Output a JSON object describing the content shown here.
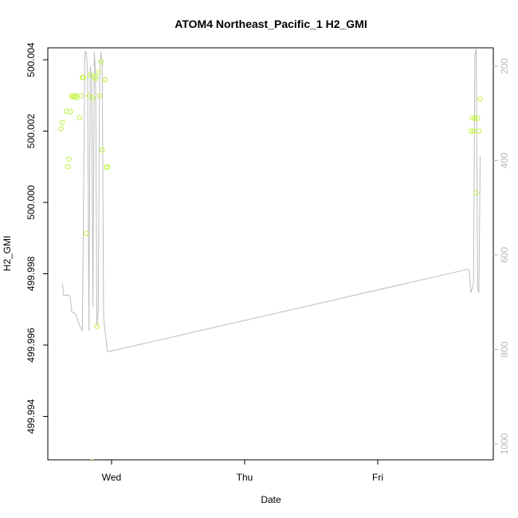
{
  "chart_data": {
    "type": "scatter",
    "title": "ATOM4 Northeast_Pacific_1 H2_GMI",
    "xlabel": "Date",
    "ylabel": "H2_GMI",
    "x_ticks": [
      "Wed",
      "Thu",
      "Fri"
    ],
    "y_ticks": [
      "499.994",
      "499.996",
      "499.998",
      "500.000",
      "500.002",
      "500.004"
    ],
    "right_ticks": [
      "200",
      "400",
      "600",
      "800",
      "1000"
    ],
    "xlim_days": [
      -0.5,
      2.86
    ],
    "ylim": [
      499.99286,
      500.00403
    ],
    "right_ylim": [
      1000,
      200
    ],
    "colors": {
      "points": "#bff542",
      "line": "#bdbdbd",
      "axis": "#000000",
      "right_axis": "#b8b8b8"
    },
    "series": [
      {
        "role": "points",
        "x_days": [
          -0.38,
          -0.37,
          -0.34,
          -0.33,
          -0.32,
          -0.31,
          -0.3,
          -0.29,
          -0.28,
          -0.27,
          -0.26,
          -0.24,
          -0.23,
          -0.22,
          -0.21,
          -0.19,
          -0.17,
          -0.16,
          -0.15,
          -0.14,
          -0.13,
          -0.12,
          -0.11,
          -0.1,
          -0.09,
          -0.08,
          -0.07,
          -0.05,
          -0.04,
          -0.03,
          2.7,
          2.71,
          2.72,
          2.73,
          2.74,
          2.75,
          2.76
        ],
        "y": [
          500.00207,
          500.00224,
          500.00256,
          500.001,
          500.00121,
          500.00254,
          500.00298,
          500.00298,
          500.00296,
          500.00299,
          500.00294,
          500.00238,
          500.00299,
          500.0035,
          500.0035,
          499.99913,
          500.00299,
          500.00358,
          499.99273,
          500.00293,
          500.00352,
          500.00348,
          499.99653,
          500.00365,
          500.00299,
          500.00395,
          500.00147,
          500.00344,
          500.00099,
          500.00099,
          500.002,
          500.00237,
          500.002,
          500.00236,
          500.00027,
          500.00236,
          500.002
        ],
        "y_extra": [
          {
            "x_days": 2.77,
            "y": 500.0029
          }
        ]
      },
      {
        "role": "line",
        "axis": "right",
        "x_days": [
          -0.37,
          -0.36,
          -0.34,
          -0.32,
          -0.31,
          -0.3,
          -0.27,
          -0.24,
          -0.22,
          -0.2,
          -0.19,
          -0.18,
          -0.17,
          -0.16,
          -0.15,
          -0.14,
          -0.13,
          -0.12,
          -0.11,
          -0.1,
          -0.09,
          -0.08,
          -0.07,
          -0.06,
          -0.05,
          -0.03,
          2.68,
          2.69,
          2.7,
          2.72,
          2.73,
          2.74,
          2.75,
          2.76,
          2.77
        ],
        "values": [
          660,
          685,
          685,
          685,
          690,
          720,
          725,
          750,
          760,
          170,
          170,
          210,
          760,
          200,
          230,
          710,
          170,
          220,
          750,
          720,
          230,
          170,
          190,
          730,
          760,
          805,
          630,
          640,
          680,
          660,
          180,
          160,
          670,
          680,
          390
        ]
      }
    ]
  }
}
